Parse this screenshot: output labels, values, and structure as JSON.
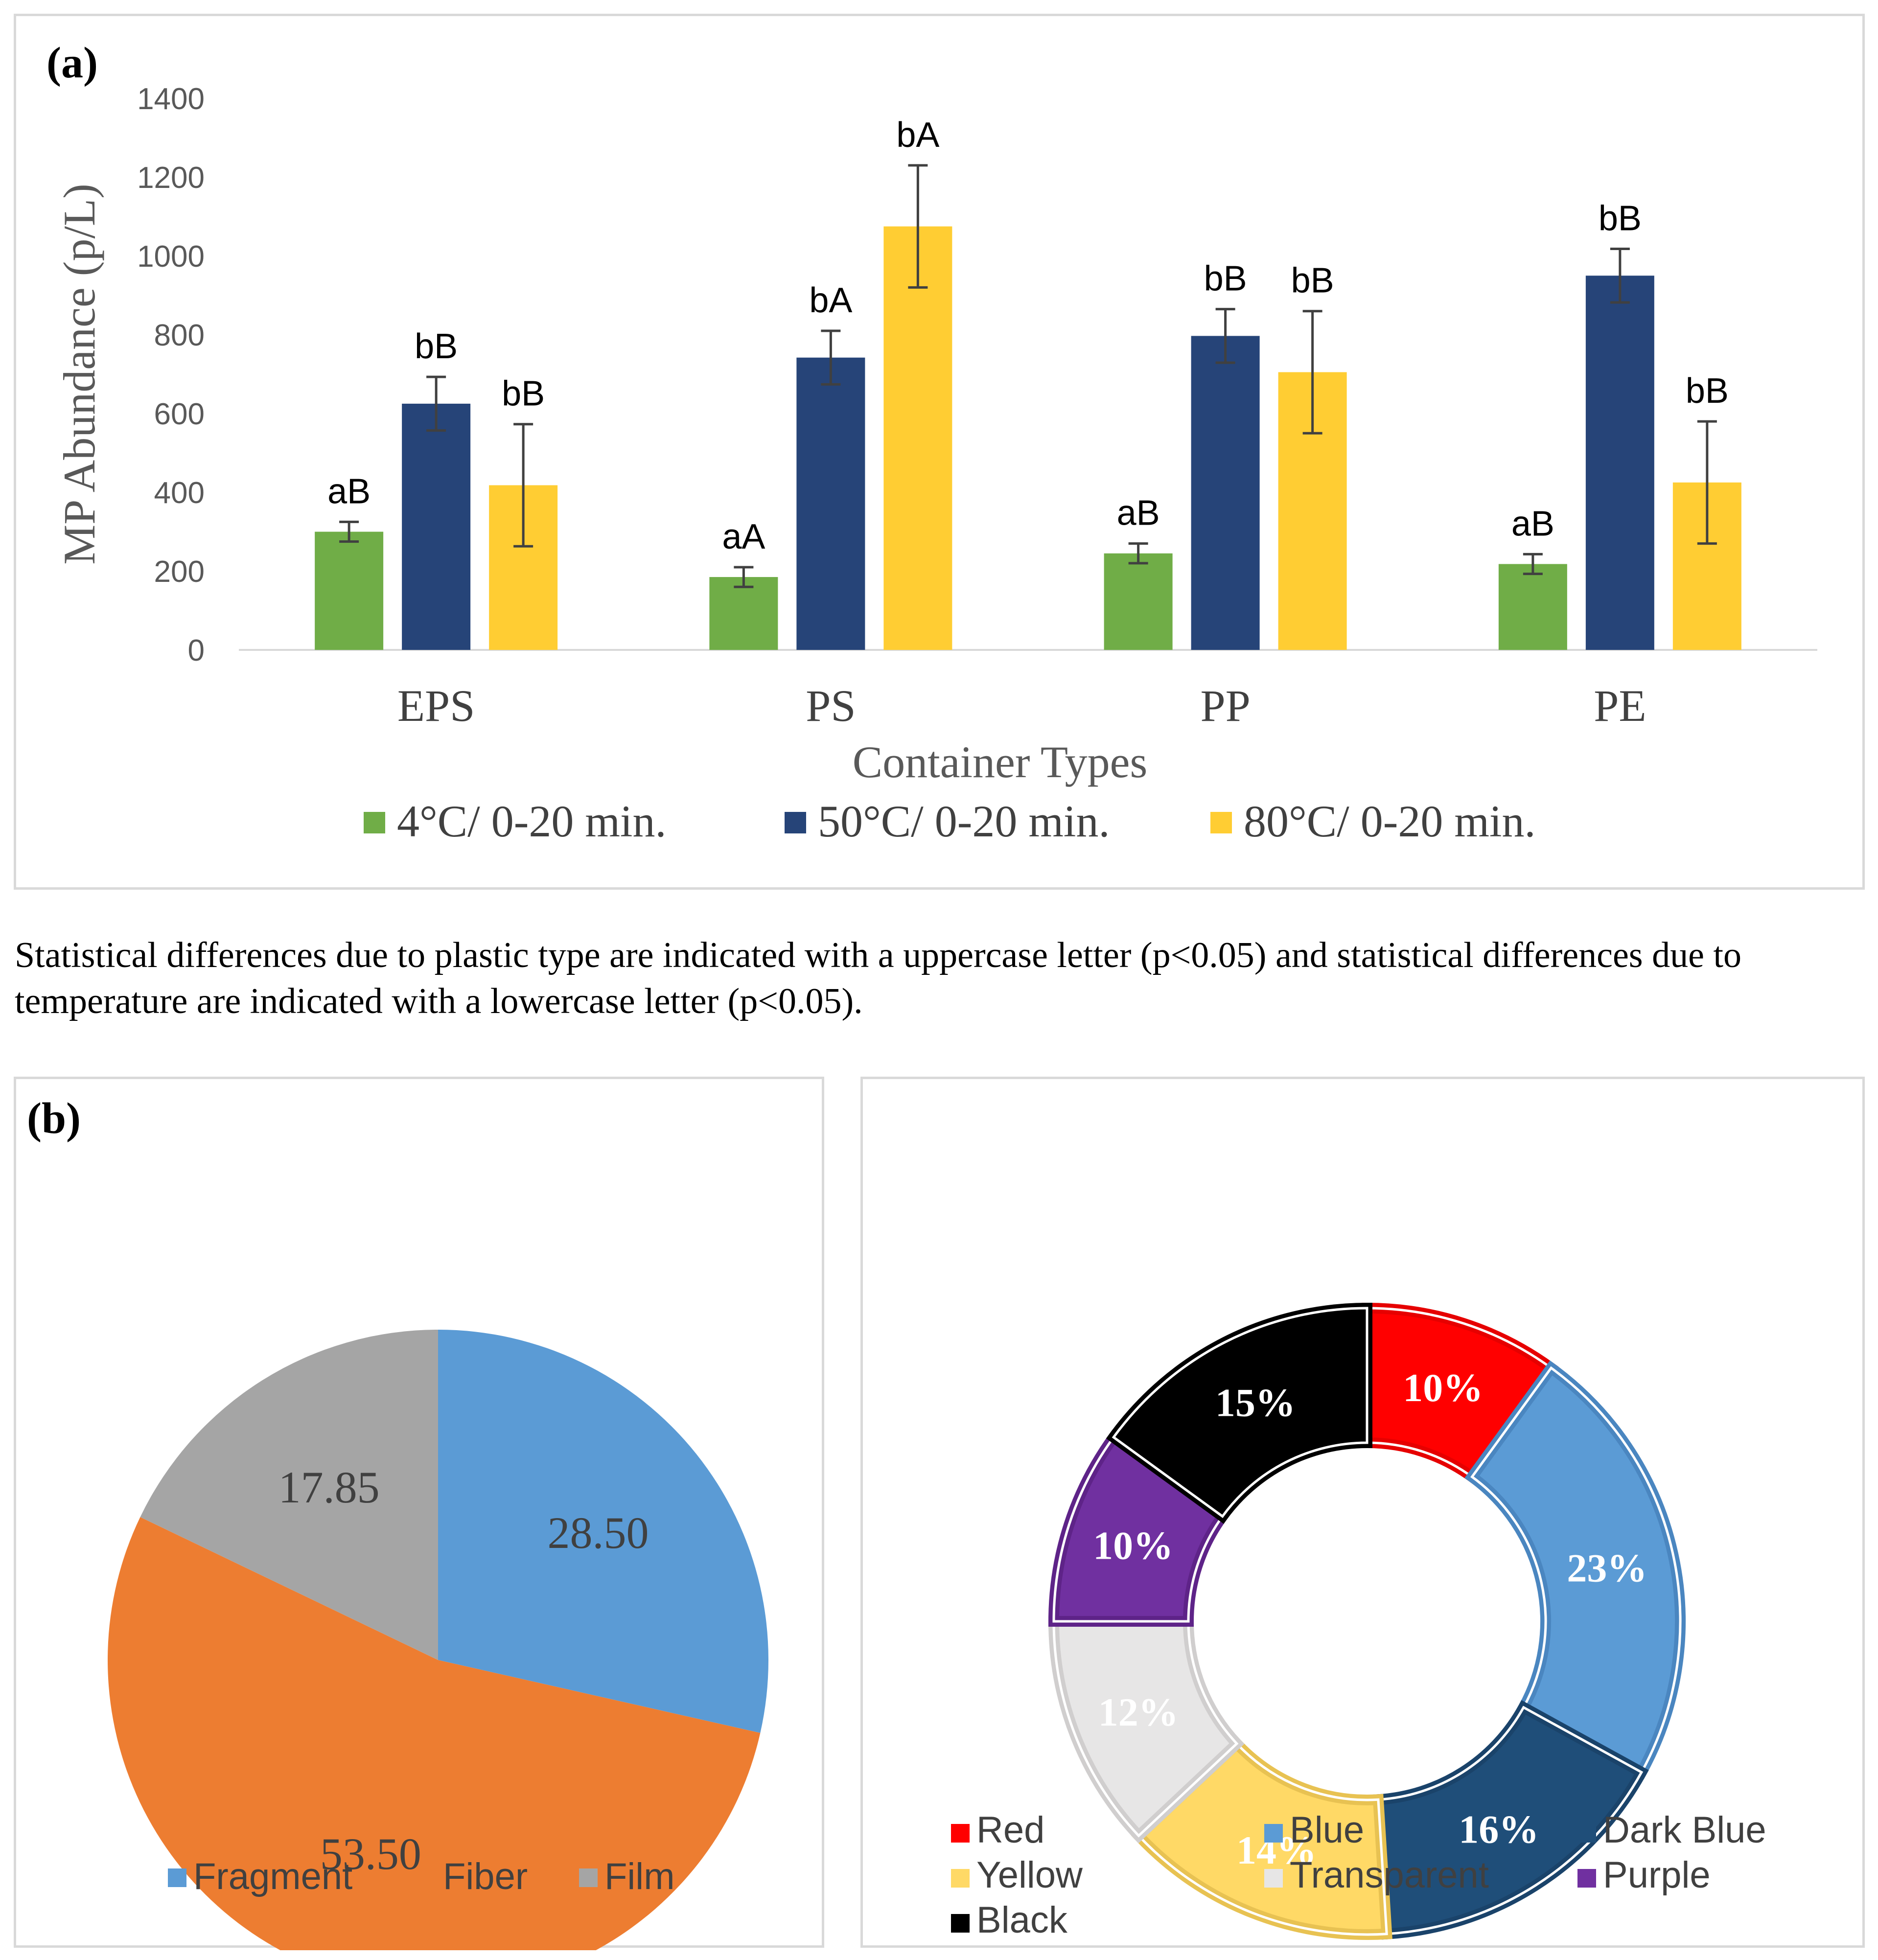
{
  "chart_data": [
    {
      "type": "bar",
      "panel_label": "(a)",
      "title": "",
      "xlabel": "Container Types",
      "ylabel": "MP Abundance (p/L)",
      "ylim": [
        0,
        1400
      ],
      "yticks": [
        0,
        200,
        400,
        600,
        800,
        1000,
        1200,
        1400
      ],
      "categories": [
        "EPS",
        "PS",
        "PP",
        "PE"
      ],
      "series": [
        {
          "name": "4°C/ 0-20 min.",
          "color": "#70ad47",
          "values": [
            300,
            185,
            245,
            218
          ],
          "errors": [
            25,
            25,
            25,
            25
          ],
          "annotations": [
            "aB",
            "aA",
            "aB",
            "aB"
          ]
        },
        {
          "name": "50°C/ 0-20 min.",
          "color": "#264478",
          "values": [
            625,
            742,
            797,
            950
          ],
          "errors": [
            68,
            68,
            68,
            68
          ],
          "annotations": [
            "bB",
            "bA",
            "bB",
            "bB"
          ]
        },
        {
          "name": "80°C/ 0-20 min.",
          "color": "#ffcd33",
          "values": [
            418,
            1075,
            705,
            425
          ],
          "errors": [
            155,
            155,
            155,
            155
          ],
          "annotations": [
            "bB",
            "bA",
            "bB",
            "bB"
          ]
        }
      ],
      "legend_position": "bottom"
    },
    {
      "type": "pie",
      "panel_label": "(b)",
      "categories": [
        "Fragment",
        "Fiber",
        "Film"
      ],
      "values": [
        28.5,
        53.5,
        17.85
      ],
      "labels": [
        "28.50",
        "53.50",
        "17.85"
      ],
      "colors": [
        "#5b9bd5",
        "#ed7d31",
        "#a5a5a5"
      ],
      "legend_position": "bottom"
    },
    {
      "type": "pie",
      "subtype": "donut",
      "categories": [
        "Red",
        "Blue",
        "Dark Blue",
        "Yellow",
        "Transparent",
        "Purple",
        "Black"
      ],
      "values": [
        10,
        23,
        16,
        14,
        12,
        10,
        15
      ],
      "labels": [
        "10%",
        "23%",
        "16%",
        "14%",
        "12%",
        "10%",
        "15%"
      ],
      "colors": [
        "#ff0000",
        "#5b9bd5",
        "#1f4e79",
        "#ffd966",
        "#e7e6e6",
        "#7030a0",
        "#000000"
      ],
      "borders": [
        "#e60000",
        "#4a86c0",
        "#1a436a",
        "#e8c252",
        "#d0cece",
        "#5e2388",
        "#000000"
      ],
      "label_colors": [
        "#ffffff",
        "#ffffff",
        "#ffffff",
        "#ffffff",
        "#ffffff",
        "#ffffff",
        "#ffffff"
      ],
      "legend_position": "bottom"
    }
  ],
  "caption": "Statistical differences due to plastic type are indicated with a uppercase letter (p<0.05) and statistical differences due to temperature are indicated with a lowercase letter (p<0.05)."
}
